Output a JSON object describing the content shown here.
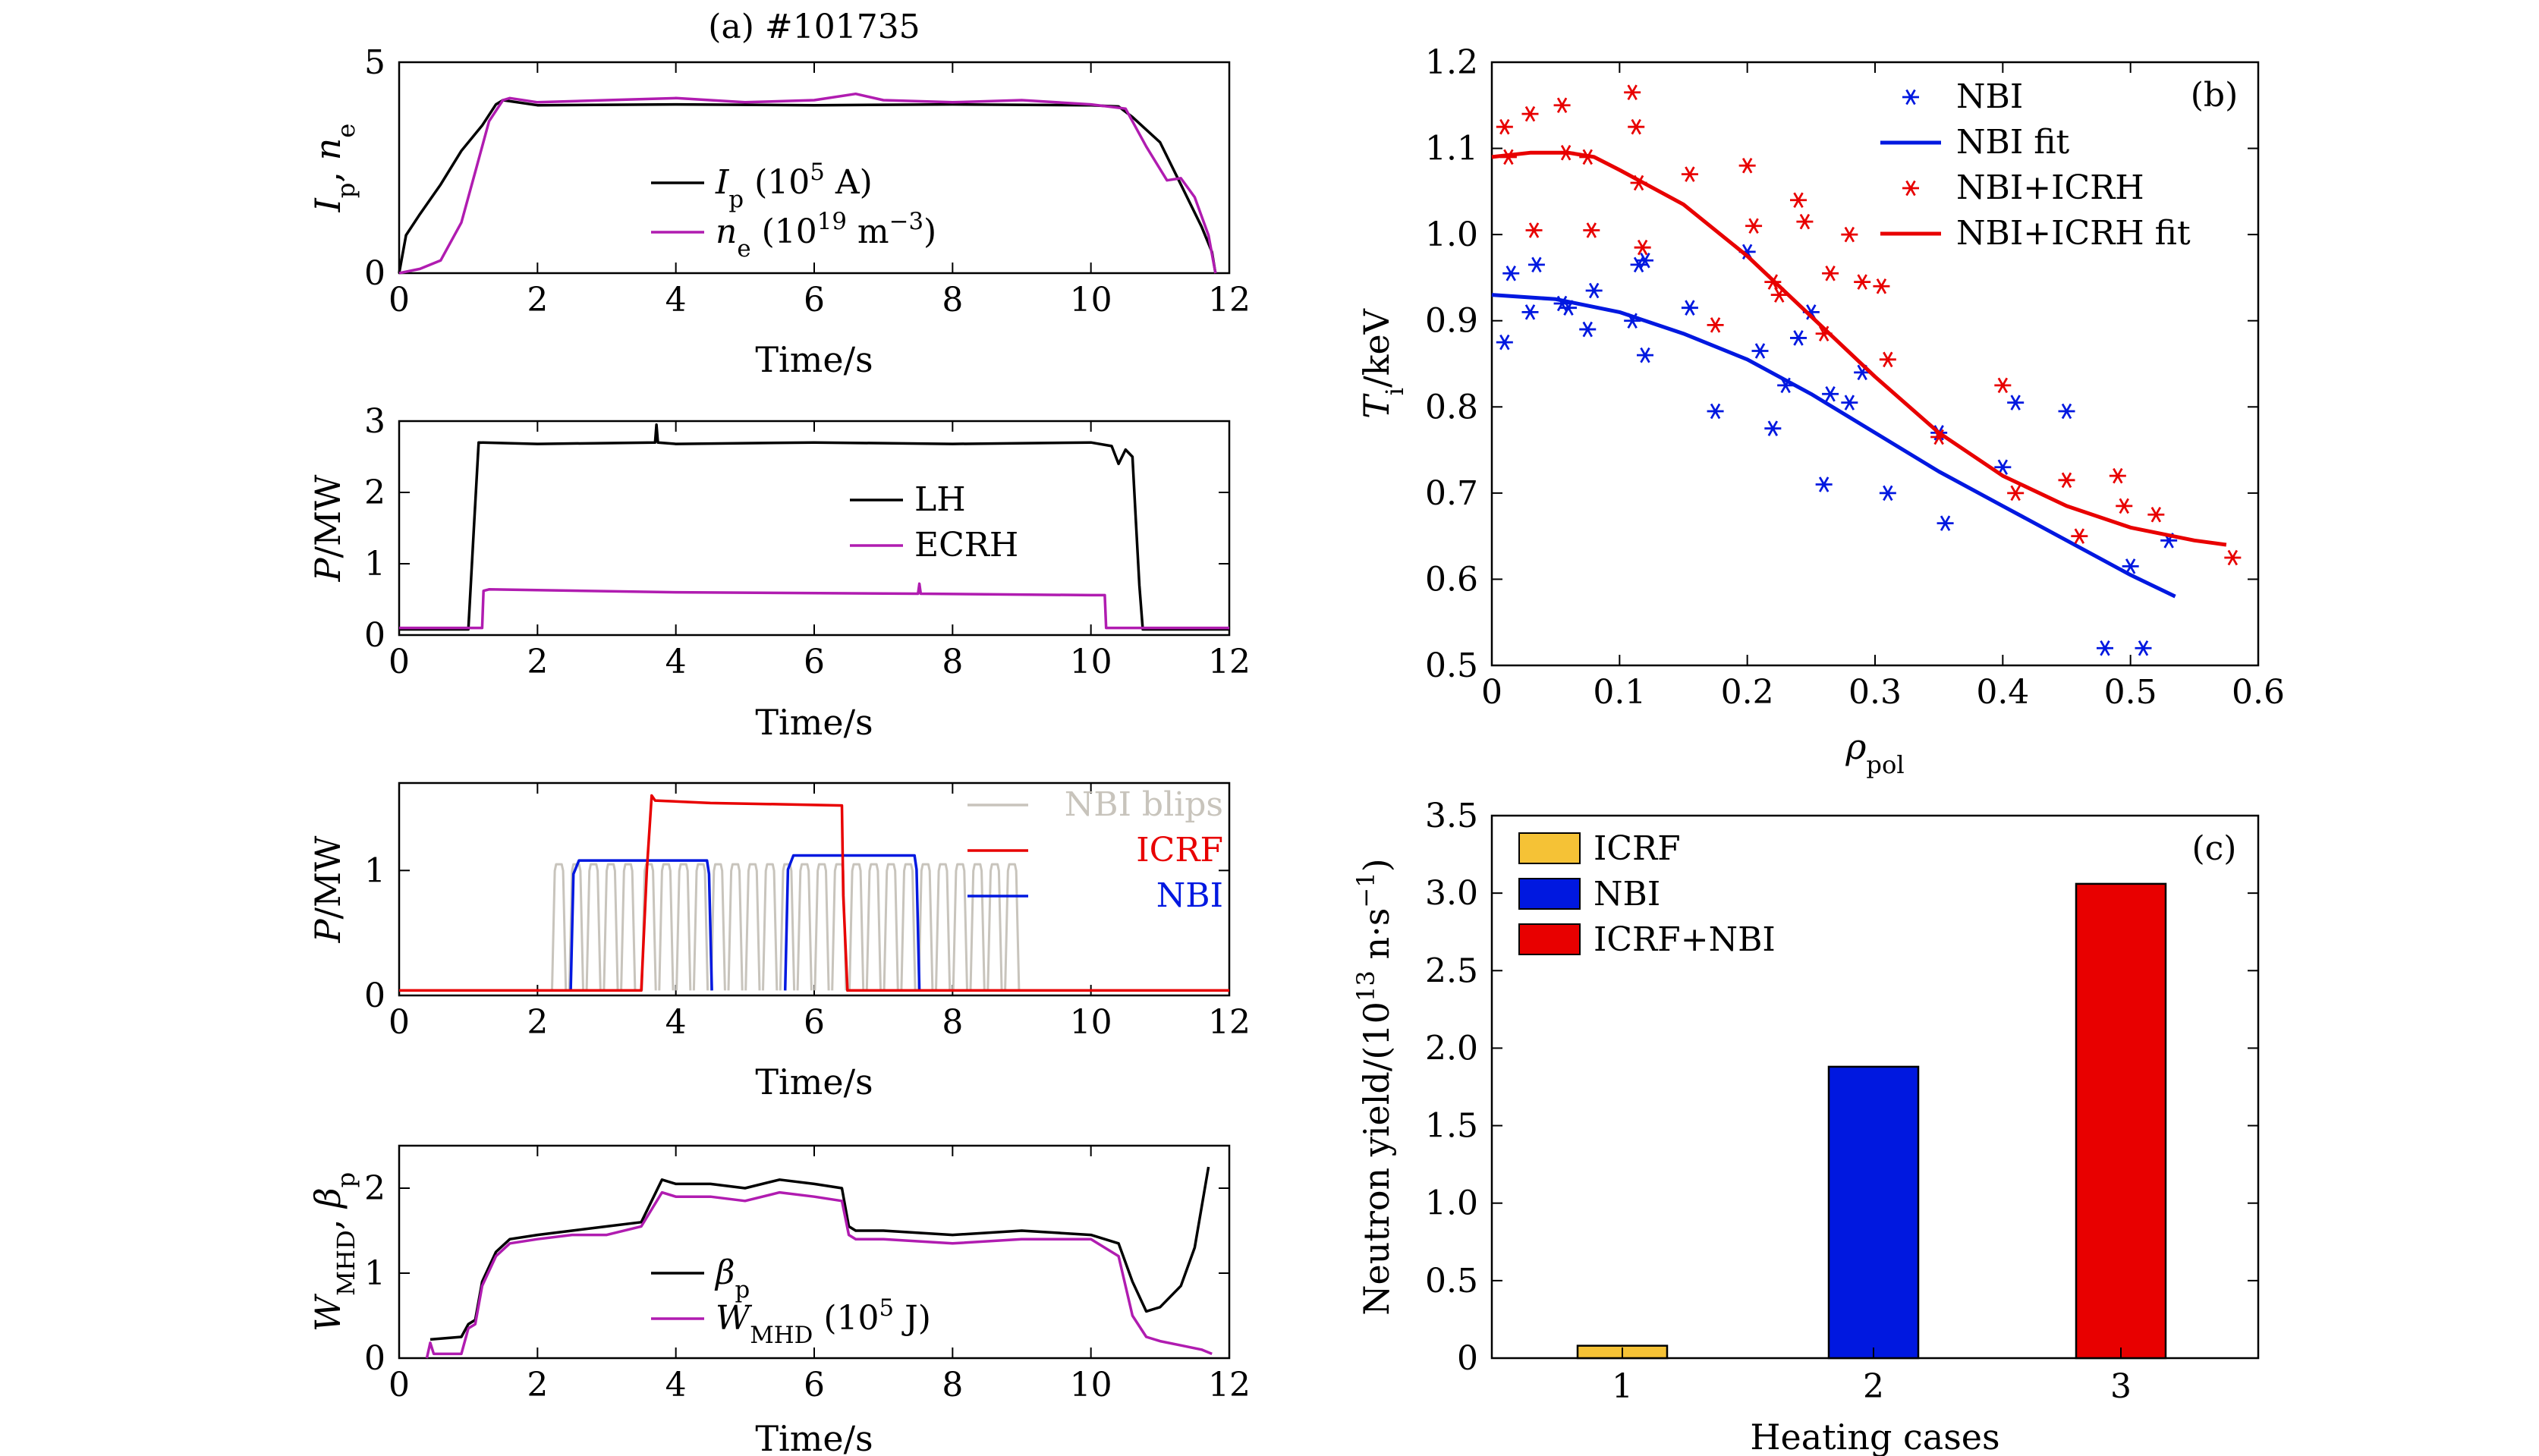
{
  "colors": {
    "black": "#000000",
    "magenta": "#b01cb0",
    "red": "#e80000",
    "blue": "#0018e0",
    "grey": "#c8c4bc",
    "yellow": "#f5c236"
  },
  "chart_data": [
    {
      "type": "line",
      "title": "(a) #101735",
      "xlabel": "Time/s",
      "ylabel": "Ip, ne",
      "ylabel_main": "I",
      "ylabel_sub": "p",
      "ylabel_sep": ", ",
      "ylabel_main2": "n",
      "ylabel_sub2": "e",
      "xlim": [
        0,
        12
      ],
      "ylim": [
        0,
        5
      ],
      "xticks": [
        "0",
        "2",
        "4",
        "6",
        "8",
        "10",
        "12"
      ],
      "yticks": [
        "0",
        "5"
      ],
      "legend": "center-right",
      "series": [
        {
          "name": "Ip (10^5 A)",
          "legend_main": "I",
          "legend_sub": "p",
          "legend_rest": " (10",
          "legend_sup": "5",
          "legend_tail": " A)",
          "color": "black",
          "x": [
            0,
            0.1,
            0.3,
            0.6,
            0.9,
            1.2,
            1.4,
            1.5,
            2,
            4,
            6,
            8,
            10,
            10.4,
            10.6,
            11,
            11.3,
            11.6,
            11.75,
            11.8
          ],
          "y": [
            0,
            0.9,
            1.4,
            2.1,
            2.9,
            3.5,
            4.0,
            4.1,
            3.98,
            4.0,
            3.98,
            4.0,
            3.98,
            3.95,
            3.7,
            3.1,
            2.1,
            1.1,
            0.5,
            0
          ]
        },
        {
          "name": "ne (10^19 m^-3)",
          "legend_main": "n",
          "legend_sub": "e",
          "legend_rest": " (10",
          "legend_sup": "19",
          "legend_tail": " m",
          "legend_sup2": "−3",
          "legend_tail2": ")",
          "color": "magenta",
          "x": [
            0,
            0.3,
            0.6,
            0.9,
            1.1,
            1.3,
            1.5,
            1.6,
            2,
            3,
            4,
            5,
            6,
            6.6,
            7,
            8,
            9,
            10,
            10.5,
            10.8,
            11.1,
            11.3,
            11.5,
            11.7,
            11.8
          ],
          "y": [
            0,
            0.1,
            0.3,
            1.2,
            2.4,
            3.6,
            4.1,
            4.15,
            4.05,
            4.1,
            4.15,
            4.05,
            4.1,
            4.25,
            4.1,
            4.05,
            4.1,
            4.0,
            3.9,
            3.0,
            2.2,
            2.25,
            1.8,
            0.9,
            0
          ]
        }
      ]
    },
    {
      "type": "line",
      "xlabel": "Time/s",
      "ylabel": "P/MW",
      "xlim": [
        0,
        12
      ],
      "ylim": [
        0,
        3
      ],
      "xticks": [
        "0",
        "2",
        "4",
        "6",
        "8",
        "10",
        "12"
      ],
      "yticks": [
        "0",
        "1",
        "2",
        "3"
      ],
      "legend": "center-right",
      "series": [
        {
          "name": "LH",
          "color": "black",
          "x": [
            0,
            1.0,
            1.08,
            1.15,
            2,
            3.7,
            3.72,
            3.74,
            4,
            6,
            8,
            10,
            10.3,
            10.4,
            10.5,
            10.6,
            10.65,
            10.7,
            10.75,
            10.8,
            12
          ],
          "y": [
            0.08,
            0.08,
            1.5,
            2.7,
            2.68,
            2.7,
            2.95,
            2.7,
            2.68,
            2.7,
            2.68,
            2.7,
            2.65,
            2.4,
            2.6,
            2.5,
            1.6,
            0.7,
            0.08,
            0.08,
            0.08
          ]
        },
        {
          "name": "ECRH",
          "color": "magenta",
          "x": [
            0,
            1.2,
            1.22,
            1.3,
            4,
            7.5,
            7.52,
            7.54,
            10,
            10.2,
            10.22,
            12
          ],
          "y": [
            0.1,
            0.1,
            0.62,
            0.64,
            0.6,
            0.58,
            0.72,
            0.58,
            0.56,
            0.56,
            0.1,
            0.1
          ]
        }
      ]
    },
    {
      "type": "line",
      "xlabel": "Time/s",
      "ylabel": "P/MW",
      "xlim": [
        0,
        12
      ],
      "ylim": [
        0,
        1.7
      ],
      "xticks": [
        "0",
        "2",
        "4",
        "6",
        "8",
        "10",
        "12"
      ],
      "yticks": [
        "0",
        "1"
      ],
      "legend": "top-right",
      "series": [
        {
          "name": "NBI blips",
          "color": "grey",
          "blips": [
            2.25,
            2.5,
            2.75,
            3.0,
            3.25,
            3.55,
            3.8,
            4.05,
            4.3,
            4.55,
            4.8,
            5.05,
            5.3,
            5.55,
            5.8,
            6.05,
            6.3,
            6.55,
            6.8,
            7.05,
            7.3,
            7.55,
            7.8,
            8.05,
            8.3,
            8.55,
            8.8
          ],
          "width": 0.12,
          "level": 1.05
        },
        {
          "name": "ICRF",
          "color": "red",
          "x": [
            0,
            3.5,
            3.58,
            3.65,
            3.7,
            4.5,
            5.5,
            6.4,
            6.42,
            6.48,
            12
          ],
          "y": [
            0.04,
            0.04,
            1.0,
            1.6,
            1.56,
            1.54,
            1.53,
            1.52,
            0.8,
            0.04,
            0.04
          ]
        },
        {
          "name": "NBI",
          "color": "blue",
          "segments": [
            [
              2.5,
              4.5,
              1.08
            ],
            [
              5.6,
              7.5,
              1.12
            ]
          ]
        }
      ]
    },
    {
      "type": "line",
      "xlabel": "Time/s",
      "ylabel": "WMHD, βp",
      "ylabel_main": "W",
      "ylabel_sub": "MHD",
      "ylabel_sep": ", ",
      "ylabel_main2": "β",
      "ylabel_sub2": "p",
      "xlim": [
        0,
        12
      ],
      "ylim": [
        0,
        2.5
      ],
      "xticks": [
        "0",
        "2",
        "4",
        "6",
        "8",
        "10",
        "12"
      ],
      "yticks": [
        "0",
        "1",
        "2"
      ],
      "legend": "bottom-right",
      "series": [
        {
          "name": "βp",
          "legend_main": "β",
          "legend_sub": "p",
          "color": "black",
          "x": [
            0.45,
            0.9,
            1.0,
            1.1,
            1.2,
            1.4,
            1.6,
            2,
            2.5,
            3,
            3.5,
            3.8,
            4,
            4.5,
            5,
            5.5,
            6,
            6.4,
            6.5,
            6.6,
            7,
            8,
            9,
            10,
            10.4,
            10.6,
            10.8,
            11,
            11.3,
            11.5,
            11.7
          ],
          "y": [
            0.22,
            0.25,
            0.4,
            0.45,
            0.9,
            1.25,
            1.4,
            1.45,
            1.5,
            1.55,
            1.6,
            2.1,
            2.05,
            2.05,
            2.0,
            2.1,
            2.05,
            2.0,
            1.55,
            1.5,
            1.5,
            1.45,
            1.5,
            1.45,
            1.35,
            0.9,
            0.55,
            0.6,
            0.85,
            1.3,
            2.25
          ]
        },
        {
          "name": "WMHD (10^5 J)",
          "legend_main": "W",
          "legend_sub": "MHD",
          "legend_rest": " (10",
          "legend_sup": "5",
          "legend_tail": " J)",
          "color": "magenta",
          "x": [
            0.4,
            0.45,
            0.5,
            0.9,
            1.0,
            1.1,
            1.2,
            1.4,
            1.6,
            2,
            2.5,
            3,
            3.5,
            3.8,
            4,
            4.5,
            5,
            5.5,
            6,
            6.4,
            6.5,
            6.6,
            7,
            8,
            9,
            10,
            10.4,
            10.6,
            10.8,
            11,
            11.3,
            11.6,
            11.75
          ],
          "y": [
            0.0,
            0.18,
            0.05,
            0.05,
            0.35,
            0.4,
            0.85,
            1.2,
            1.35,
            1.4,
            1.45,
            1.45,
            1.55,
            1.95,
            1.9,
            1.9,
            1.85,
            1.95,
            1.9,
            1.85,
            1.45,
            1.4,
            1.4,
            1.35,
            1.4,
            1.4,
            1.2,
            0.5,
            0.25,
            0.2,
            0.15,
            0.1,
            0.05
          ]
        }
      ]
    },
    {
      "type": "scatter",
      "panel_label": "(b)",
      "xlabel": "ρpol",
      "xlabel_main": "ρ",
      "xlabel_sub": "pol",
      "ylabel": "Ti/keV",
      "ylabel_main": "T",
      "ylabel_sub": "i",
      "ylabel_rest": "/keV",
      "xlim": [
        0,
        0.6
      ],
      "ylim": [
        0.5,
        1.2
      ],
      "xticks": [
        "0",
        "0.1",
        "0.2",
        "0.3",
        "0.4",
        "0.5",
        "0.6"
      ],
      "yticks": [
        "0.5",
        "0.6",
        "0.7",
        "0.8",
        "0.9",
        "1.0",
        "1.1",
        "1.2"
      ],
      "legend": "top-right",
      "series": [
        {
          "name": "NBI",
          "color": "blue",
          "marker": "star",
          "x": [
            0.01,
            0.015,
            0.03,
            0.035,
            0.055,
            0.06,
            0.075,
            0.08,
            0.11,
            0.115,
            0.12,
            0.12,
            0.155,
            0.175,
            0.2,
            0.21,
            0.22,
            0.23,
            0.24,
            0.25,
            0.26,
            0.265,
            0.28,
            0.29,
            0.31,
            0.35,
            0.355,
            0.4,
            0.41,
            0.45,
            0.48,
            0.5,
            0.51,
            0.53
          ],
          "y": [
            0.875,
            0.955,
            0.91,
            0.965,
            0.92,
            0.915,
            0.89,
            0.935,
            0.9,
            0.965,
            0.97,
            0.86,
            0.915,
            0.795,
            0.98,
            0.865,
            0.775,
            0.825,
            0.88,
            0.91,
            0.71,
            0.815,
            0.805,
            0.84,
            0.7,
            0.77,
            0.665,
            0.73,
            0.805,
            0.795,
            0.52,
            0.615,
            0.52,
            0.645
          ]
        },
        {
          "name": "NBI fit",
          "color": "blue",
          "type": "line",
          "x": [
            0,
            0.05,
            0.1,
            0.15,
            0.2,
            0.25,
            0.3,
            0.35,
            0.4,
            0.45,
            0.5,
            0.535
          ],
          "y": [
            0.93,
            0.925,
            0.91,
            0.885,
            0.855,
            0.815,
            0.77,
            0.725,
            0.685,
            0.645,
            0.605,
            0.58
          ]
        },
        {
          "name": "NBI+ICRH",
          "color": "red",
          "marker": "star",
          "x": [
            0.01,
            0.013,
            0.03,
            0.033,
            0.055,
            0.058,
            0.075,
            0.078,
            0.11,
            0.113,
            0.115,
            0.118,
            0.155,
            0.175,
            0.2,
            0.205,
            0.22,
            0.225,
            0.24,
            0.245,
            0.26,
            0.265,
            0.28,
            0.29,
            0.305,
            0.31,
            0.35,
            0.4,
            0.41,
            0.45,
            0.46,
            0.49,
            0.495,
            0.52,
            0.58
          ],
          "y": [
            1.125,
            1.09,
            1.14,
            1.005,
            1.15,
            1.095,
            1.09,
            1.005,
            1.165,
            1.125,
            1.06,
            0.985,
            1.07,
            0.895,
            1.08,
            1.01,
            0.945,
            0.93,
            1.04,
            1.015,
            0.885,
            0.955,
            1.0,
            0.945,
            0.94,
            0.855,
            0.765,
            0.825,
            0.7,
            0.715,
            0.65,
            0.72,
            0.685,
            0.675,
            0.625
          ]
        },
        {
          "name": "NBI+ICRH fit",
          "color": "red",
          "type": "line",
          "x": [
            0,
            0.03,
            0.06,
            0.08,
            0.1,
            0.15,
            0.2,
            0.25,
            0.3,
            0.35,
            0.4,
            0.45,
            0.5,
            0.55,
            0.575
          ],
          "y": [
            1.09,
            1.095,
            1.095,
            1.09,
            1.075,
            1.035,
            0.975,
            0.905,
            0.835,
            0.77,
            0.72,
            0.685,
            0.66,
            0.645,
            0.64
          ]
        }
      ]
    },
    {
      "type": "bar",
      "panel_label": "(c)",
      "xlabel": "Heating cases",
      "ylabel": "Neutron yield/(10^13 n·s^-1)",
      "ylabel_a": "Neutron yield/(10",
      "ylabel_sup": "13",
      "ylabel_b": " n·s",
      "ylabel_sup2": "−1",
      "ylabel_c": ")",
      "categories": [
        "1",
        "2",
        "3"
      ],
      "values": [
        0.08,
        1.88,
        3.06
      ],
      "ylim": [
        0,
        3.5
      ],
      "yticks": [
        "0",
        "0.5",
        "1.0",
        "1.5",
        "2.0",
        "2.5",
        "3.0",
        "3.5"
      ],
      "legend": "top-left",
      "series": [
        {
          "name": "ICRF",
          "color": "yellow"
        },
        {
          "name": "NBI",
          "color": "blue"
        },
        {
          "name": "ICRF+NBI",
          "color": "red"
        }
      ]
    }
  ]
}
